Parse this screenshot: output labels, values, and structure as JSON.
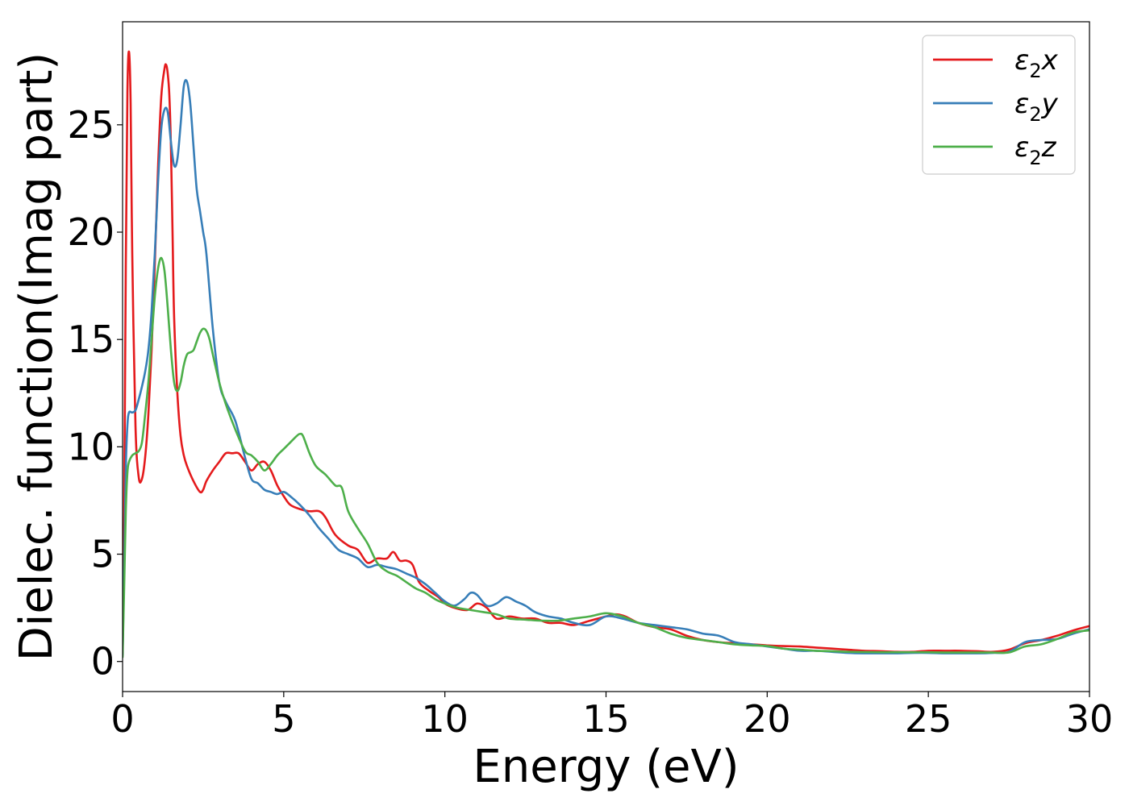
{
  "chart_data": {
    "type": "line",
    "title": "",
    "xlabel": "Energy (eV)",
    "ylabel": "Dielec. function(Imag part)",
    "xlim": [
      0,
      30
    ],
    "ylim": [
      -1.4,
      29.8
    ],
    "xticks": [
      0,
      5,
      10,
      15,
      20,
      25,
      30
    ],
    "yticks": [
      0,
      5,
      10,
      15,
      20,
      25
    ],
    "grid": false,
    "legend_position": "top-right",
    "series": [
      {
        "name": "ε₂x",
        "label_main": "ε",
        "label_sub": "2",
        "label_tail": "x",
        "color": "#e41a1c",
        "x": [
          0,
          0.05,
          0.1,
          0.15,
          0.2,
          0.25,
          0.3,
          0.4,
          0.5,
          0.6,
          0.7,
          0.8,
          0.9,
          1.0,
          1.1,
          1.2,
          1.3,
          1.35,
          1.4,
          1.45,
          1.5,
          1.55,
          1.6,
          1.7,
          1.8,
          1.9,
          2.0,
          2.2,
          2.4,
          2.5,
          2.6,
          2.8,
          3.0,
          3.2,
          3.4,
          3.6,
          3.8,
          4.0,
          4.2,
          4.4,
          4.6,
          4.8,
          5.0,
          5.2,
          5.5,
          5.8,
          6.1,
          6.3,
          6.6,
          7.0,
          7.3,
          7.6,
          7.9,
          8.2,
          8.4,
          8.6,
          8.8,
          9.0,
          9.2,
          9.5,
          9.8,
          10.0,
          10.3,
          10.7,
          11.0,
          11.3,
          11.6,
          12.0,
          12.4,
          12.8,
          13.2,
          13.6,
          14.0,
          14.5,
          15.0,
          15.3,
          15.6,
          16.0,
          16.5,
          17.0,
          17.5,
          18.0,
          18.5,
          19.0,
          19.5,
          20.0,
          20.5,
          21.0,
          21.5,
          22.0,
          22.5,
          23.0,
          23.5,
          24.0,
          24.5,
          25.0,
          25.5,
          26.0,
          26.5,
          27.0,
          27.5,
          28.0,
          28.5,
          29.0,
          29.5,
          30.0
        ],
        "y": [
          0.4,
          7.0,
          18.5,
          26.5,
          28.4,
          26.0,
          19.0,
          11.0,
          8.6,
          8.5,
          9.5,
          11.5,
          14.5,
          18.5,
          23.0,
          26.3,
          27.6,
          27.8,
          27.4,
          26.4,
          24.0,
          20.0,
          16.0,
          12.5,
          10.5,
          9.6,
          9.1,
          8.4,
          7.9,
          8.0,
          8.4,
          8.9,
          9.3,
          9.7,
          9.7,
          9.7,
          9.3,
          8.9,
          9.2,
          9.3,
          8.9,
          8.2,
          7.7,
          7.3,
          7.1,
          7.0,
          7.0,
          6.7,
          5.9,
          5.4,
          5.2,
          4.6,
          4.8,
          4.8,
          5.1,
          4.7,
          4.7,
          4.5,
          3.7,
          3.3,
          3.0,
          2.7,
          2.5,
          2.4,
          2.7,
          2.5,
          2.0,
          2.1,
          2.0,
          2.0,
          1.8,
          1.8,
          1.7,
          1.9,
          2.1,
          2.2,
          2.1,
          1.8,
          1.6,
          1.5,
          1.2,
          1.0,
          0.9,
          0.85,
          0.8,
          0.75,
          0.72,
          0.7,
          0.65,
          0.6,
          0.55,
          0.5,
          0.48,
          0.45,
          0.45,
          0.5,
          0.5,
          0.5,
          0.48,
          0.45,
          0.55,
          0.85,
          1.0,
          1.2,
          1.45,
          1.65
        ]
      },
      {
        "name": "ε₂y",
        "label_main": "ε",
        "label_sub": "2",
        "label_tail": "y",
        "color": "#377eb8",
        "x": [
          0,
          0.05,
          0.1,
          0.15,
          0.2,
          0.3,
          0.4,
          0.5,
          0.6,
          0.7,
          0.8,
          0.9,
          1.0,
          1.1,
          1.2,
          1.3,
          1.4,
          1.5,
          1.6,
          1.7,
          1.8,
          1.9,
          2.0,
          2.1,
          2.2,
          2.3,
          2.4,
          2.5,
          2.6,
          2.8,
          3.0,
          3.2,
          3.5,
          3.8,
          4.0,
          4.2,
          4.4,
          4.6,
          4.8,
          5.0,
          5.2,
          5.5,
          5.8,
          6.1,
          6.4,
          6.7,
          7.0,
          7.3,
          7.6,
          7.9,
          8.2,
          8.5,
          8.8,
          9.1,
          9.4,
          9.7,
          10.0,
          10.3,
          10.6,
          10.8,
          11.0,
          11.3,
          11.6,
          11.9,
          12.2,
          12.5,
          12.8,
          13.2,
          13.6,
          14.0,
          14.5,
          15.0,
          15.5,
          16.0,
          16.5,
          17.0,
          17.5,
          18.0,
          18.5,
          19.0,
          19.5,
          20.0,
          20.5,
          21.0,
          21.5,
          22.0,
          22.5,
          23.0,
          23.5,
          24.0,
          24.5,
          25.0,
          25.5,
          26.0,
          26.5,
          27.0,
          27.5,
          28.0,
          28.5,
          29.0,
          29.5,
          30.0
        ],
        "y": [
          0.3,
          4.5,
          9.0,
          11.0,
          11.6,
          11.6,
          11.7,
          12.2,
          12.8,
          13.5,
          14.5,
          16.3,
          19.0,
          22.3,
          24.8,
          25.7,
          25.6,
          24.2,
          23.1,
          23.4,
          25.0,
          26.8,
          27.0,
          26.0,
          24.0,
          22.0,
          21.0,
          20.0,
          19.0,
          15.5,
          13.0,
          12.1,
          11.2,
          9.5,
          8.5,
          8.3,
          8.0,
          7.9,
          7.8,
          7.9,
          7.7,
          7.3,
          6.8,
          6.2,
          5.7,
          5.2,
          5.0,
          4.8,
          4.4,
          4.5,
          4.4,
          4.3,
          4.1,
          3.9,
          3.6,
          3.2,
          2.8,
          2.6,
          2.9,
          3.2,
          3.1,
          2.6,
          2.7,
          3.0,
          2.8,
          2.6,
          2.3,
          2.1,
          2.0,
          1.8,
          1.7,
          2.1,
          2.0,
          1.8,
          1.7,
          1.6,
          1.5,
          1.3,
          1.2,
          0.9,
          0.8,
          0.7,
          0.6,
          0.5,
          0.5,
          0.45,
          0.4,
          0.38,
          0.38,
          0.38,
          0.4,
          0.4,
          0.38,
          0.38,
          0.38,
          0.4,
          0.45,
          0.9,
          1.0,
          1.05,
          1.3,
          1.5
        ]
      },
      {
        "name": "ε₂z",
        "label_main": "ε",
        "label_sub": "2",
        "label_tail": "z",
        "color": "#4daf4a",
        "x": [
          0,
          0.05,
          0.1,
          0.15,
          0.2,
          0.3,
          0.4,
          0.5,
          0.6,
          0.7,
          0.8,
          0.9,
          1.0,
          1.1,
          1.2,
          1.3,
          1.4,
          1.5,
          1.6,
          1.7,
          1.8,
          1.9,
          2.0,
          2.1,
          2.2,
          2.3,
          2.4,
          2.5,
          2.6,
          2.7,
          2.8,
          3.0,
          3.2,
          3.5,
          3.8,
          4.0,
          4.2,
          4.4,
          4.6,
          4.8,
          5.0,
          5.2,
          5.4,
          5.5,
          5.6,
          5.8,
          6.0,
          6.3,
          6.6,
          6.8,
          7.0,
          7.3,
          7.6,
          7.9,
          8.2,
          8.5,
          8.8,
          9.1,
          9.4,
          9.7,
          10.0,
          10.4,
          10.8,
          11.2,
          11.6,
          12.0,
          12.5,
          13.0,
          13.5,
          14.0,
          14.5,
          15.0,
          15.5,
          16.0,
          16.5,
          17.0,
          17.5,
          18.0,
          18.5,
          19.0,
          19.5,
          20.0,
          20.5,
          21.0,
          21.5,
          22.0,
          22.5,
          23.0,
          23.5,
          24.0,
          24.5,
          25.0,
          25.5,
          26.0,
          26.5,
          27.0,
          27.5,
          28.0,
          28.5,
          29.0,
          29.5,
          30.0
        ],
        "y": [
          0.2,
          3.5,
          7.0,
          8.8,
          9.3,
          9.6,
          9.7,
          9.8,
          10.2,
          11.5,
          13.0,
          15.0,
          17.0,
          18.3,
          18.8,
          18.2,
          16.5,
          14.5,
          13.0,
          12.6,
          13.0,
          13.8,
          14.3,
          14.4,
          14.5,
          14.9,
          15.3,
          15.5,
          15.4,
          15.0,
          14.3,
          13.0,
          12.0,
          10.8,
          9.8,
          9.6,
          9.3,
          8.9,
          9.2,
          9.6,
          9.9,
          10.2,
          10.5,
          10.6,
          10.5,
          9.7,
          9.1,
          8.7,
          8.2,
          8.1,
          7.0,
          6.2,
          5.5,
          4.6,
          4.2,
          4.0,
          3.7,
          3.4,
          3.2,
          2.9,
          2.7,
          2.5,
          2.4,
          2.3,
          2.2,
          2.0,
          1.95,
          1.9,
          1.9,
          2.0,
          2.1,
          2.25,
          2.1,
          1.8,
          1.6,
          1.3,
          1.1,
          1.0,
          0.9,
          0.8,
          0.75,
          0.72,
          0.6,
          0.55,
          0.5,
          0.48,
          0.45,
          0.44,
          0.43,
          0.43,
          0.43,
          0.43,
          0.42,
          0.42,
          0.42,
          0.42,
          0.42,
          0.7,
          0.8,
          1.05,
          1.35,
          1.45
        ]
      }
    ]
  }
}
